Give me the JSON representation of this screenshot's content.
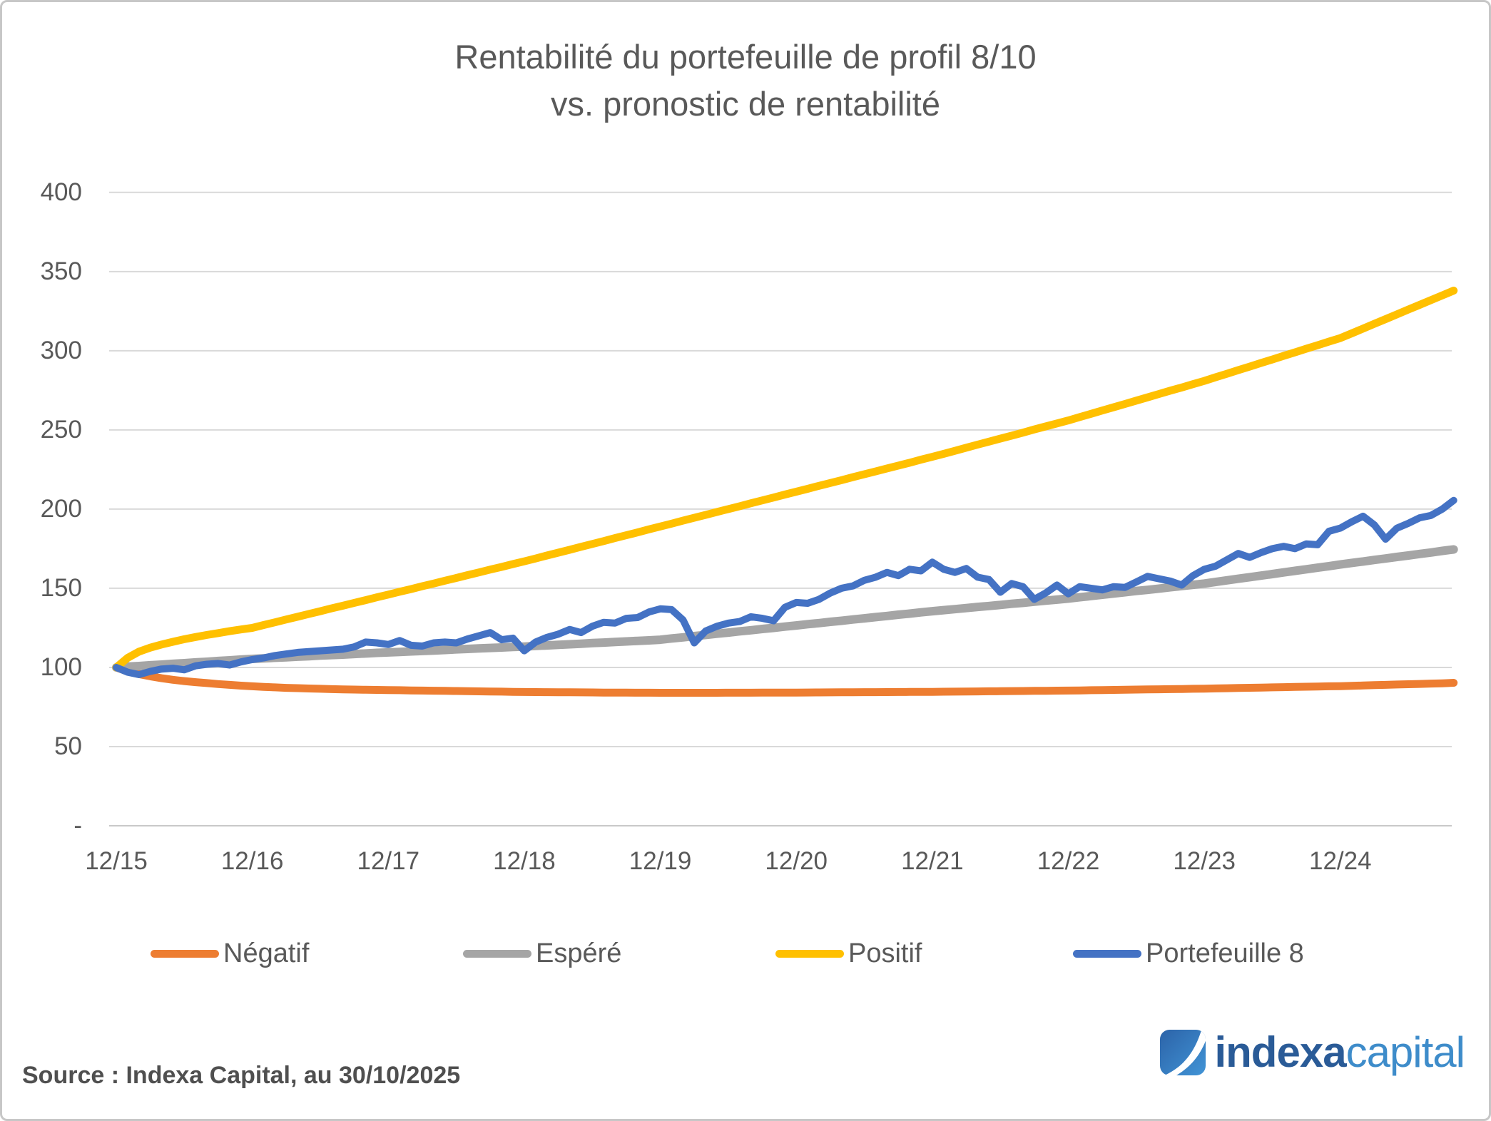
{
  "title": {
    "line1": "Rentabilité du portefeuille de profil 8/10",
    "line2": "vs. pronostic de rentabilité"
  },
  "source_note": "Source : Indexa Capital, au 30/10/2025",
  "logo": {
    "word1": "indexa",
    "word2": "capital",
    "dark_blue": "#2a5b97",
    "light_blue": "#3e8cca",
    "icon": "indexa-swoosh-icon"
  },
  "colors": {
    "negatif": "#ED7D31",
    "espere": "#A5A5A5",
    "positif": "#FFC000",
    "portefeuille": "#4472C4",
    "gridline": "#D9D9D9",
    "axis_text": "#595959"
  },
  "chart_data": {
    "type": "line",
    "title": "Rentabilité du portefeuille de profil 8/10 vs. pronostic de rentabilité",
    "x_start": "12/2015",
    "x_end": "10/2025",
    "x_frequency": "monthly",
    "x_tick_labels": [
      "12/15",
      "12/16",
      "12/17",
      "12/18",
      "12/19",
      "12/20",
      "12/21",
      "12/22",
      "12/23",
      "12/24"
    ],
    "y_ticks": {
      "values": [
        0,
        50,
        100,
        150,
        200,
        250,
        300,
        350,
        400
      ],
      "labels": [
        "-",
        "50",
        "100",
        "150",
        "200",
        "250",
        "300",
        "350",
        "400"
      ]
    },
    "ylim": [
      0,
      400
    ],
    "grid": "horizontal",
    "legend_position": "bottom",
    "base_value": 100,
    "series": [
      {
        "name": "Négatif",
        "color": "#ED7D31",
        "values": [
          100,
          97.5,
          95.8,
          94.4,
          93.2,
          92.2,
          91.4,
          90.7,
          90.1,
          89.5,
          89,
          88.5,
          88.1,
          87.7,
          87.4,
          87.1,
          86.9,
          86.7,
          86.5,
          86.3,
          86.1,
          86,
          85.9,
          85.8,
          85.7,
          85.6,
          85.5,
          85.4,
          85.3,
          85.2,
          85.1,
          85,
          84.9,
          84.8,
          84.7,
          84.6,
          84.5,
          84.45,
          84.4,
          84.35,
          84.3,
          84.25,
          84.2,
          84.15,
          84.1,
          84.08,
          84.05,
          84.02,
          84,
          84,
          84,
          84,
          84,
          84,
          84.02,
          84.04,
          84.06,
          84.08,
          84.1,
          84.12,
          84.15,
          84.19,
          84.23,
          84.26,
          84.3,
          84.34,
          84.38,
          84.41,
          84.45,
          84.49,
          84.53,
          84.56,
          84.6,
          84.67,
          84.73,
          84.8,
          84.87,
          84.93,
          85,
          85.07,
          85.13,
          85.2,
          85.27,
          85.33,
          85.4,
          85.5,
          85.6,
          85.7,
          85.8,
          85.9,
          86,
          86.1,
          86.2,
          86.3,
          86.4,
          86.5,
          86.6,
          86.73,
          86.87,
          87,
          87.13,
          87.27,
          87.4,
          87.53,
          87.67,
          87.8,
          87.93,
          88.07,
          88.2,
          88.4,
          88.6,
          88.8,
          89,
          89.2,
          89.4,
          89.6,
          89.8,
          90,
          90.3
        ]
      },
      {
        "name": "Espéré",
        "color": "#A5A5A5",
        "values": [
          100,
          100.5,
          100.9,
          101.4,
          101.8,
          102.3,
          102.7,
          103.2,
          103.6,
          104.1,
          104.5,
          105,
          105.4,
          105.7,
          106.1,
          106.4,
          106.8,
          107.1,
          107.5,
          107.8,
          108.1,
          108.5,
          108.8,
          109.2,
          109.5,
          109.8,
          110.1,
          110.4,
          110.7,
          111,
          111.4,
          111.7,
          112,
          112.3,
          112.6,
          112.9,
          113.2,
          113.6,
          113.9,
          114.3,
          114.6,
          115,
          115.4,
          115.7,
          116.1,
          116.4,
          116.8,
          117.1,
          117.5,
          118.3,
          119,
          119.8,
          120.5,
          121.3,
          122,
          122.8,
          123.5,
          124.3,
          125,
          125.8,
          126.5,
          127.3,
          128,
          128.8,
          129.5,
          130.3,
          131,
          131.8,
          132.5,
          133.3,
          134,
          134.8,
          135.5,
          136.2,
          136.8,
          137.5,
          138.2,
          138.8,
          139.5,
          140.2,
          140.8,
          141.5,
          142.2,
          142.8,
          143.5,
          144.3,
          145.1,
          145.9,
          146.7,
          147.5,
          148.3,
          149,
          149.8,
          150.6,
          151.4,
          152.2,
          153,
          154,
          155,
          156,
          157,
          158,
          159,
          160,
          161,
          162,
          163,
          164,
          165,
          166,
          166.9,
          167.9,
          168.8,
          169.8,
          170.7,
          171.7,
          172.6,
          173.6,
          174.5
        ]
      },
      {
        "name": "Positif",
        "color": "#FFC000",
        "values": [
          100,
          106,
          110,
          112.5,
          114.5,
          116.2,
          117.8,
          119.2,
          120.5,
          121.7,
          122.9,
          124,
          125,
          126.8,
          128.5,
          130.3,
          132,
          133.8,
          135.5,
          137.3,
          139,
          140.8,
          142.5,
          144.3,
          146,
          147.8,
          149.5,
          151.3,
          153,
          154.8,
          156.5,
          158.3,
          160,
          161.8,
          163.5,
          165.3,
          167,
          168.8,
          170.7,
          172.5,
          174.3,
          176.2,
          178,
          179.8,
          181.7,
          183.5,
          185.3,
          187.2,
          189,
          190.8,
          192.7,
          194.5,
          196.3,
          198.2,
          200,
          201.8,
          203.7,
          205.5,
          207.3,
          209.2,
          211,
          212.8,
          214.7,
          216.5,
          218.3,
          220.2,
          222,
          223.8,
          225.7,
          227.5,
          229.3,
          231.2,
          233,
          234.9,
          236.8,
          238.8,
          240.7,
          242.6,
          244.5,
          246.4,
          248.3,
          250.3,
          252.2,
          254.1,
          256,
          258.1,
          260.2,
          262.3,
          264.3,
          266.4,
          268.5,
          270.6,
          272.7,
          274.8,
          276.8,
          278.9,
          281,
          283.3,
          285.5,
          287.8,
          290,
          292.3,
          294.5,
          296.8,
          299,
          301.3,
          303.5,
          305.8,
          308,
          311,
          314,
          317,
          320,
          323,
          326,
          329,
          332,
          335,
          338
        ]
      },
      {
        "name": "Portefeuille 8",
        "color": "#4472C4",
        "values": [
          100,
          97,
          95.5,
          97.5,
          99,
          99.5,
          98.5,
          101,
          102,
          102.5,
          101.5,
          103.5,
          105,
          106,
          107.5,
          108.5,
          109.5,
          110,
          110.5,
          111,
          111.5,
          113,
          116,
          115.5,
          114.5,
          117,
          114,
          113.5,
          115.5,
          116,
          115.5,
          118,
          120,
          122,
          117.5,
          118.5,
          110.5,
          116,
          119,
          121,
          124,
          122,
          126,
          128.5,
          128,
          131,
          131.5,
          135,
          137,
          136.5,
          130,
          115.5,
          123,
          126,
          128,
          129,
          132,
          131,
          129.5,
          138,
          141,
          140.5,
          143,
          147,
          150,
          151.5,
          155,
          157,
          160,
          158,
          162,
          161,
          166.5,
          162,
          160,
          162.5,
          157,
          155.5,
          147.5,
          153,
          151,
          143,
          147,
          152,
          146.5,
          151,
          150,
          149,
          151,
          150.5,
          154,
          157.5,
          156,
          154.5,
          152,
          158,
          162,
          164,
          168,
          172,
          169.5,
          172.5,
          175,
          176.5,
          175,
          178,
          177.5,
          186,
          188,
          192,
          195.5,
          190,
          181,
          188,
          191,
          194.5,
          196,
          200,
          205.5
        ]
      }
    ]
  }
}
